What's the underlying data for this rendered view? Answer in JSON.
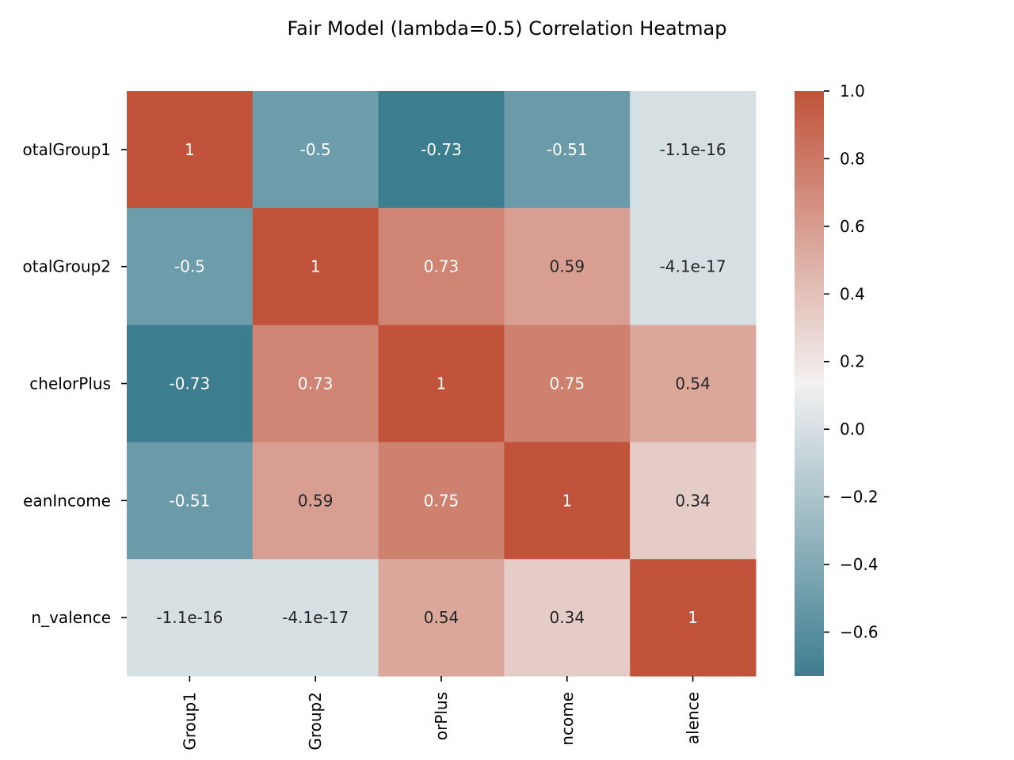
{
  "chart_data": {
    "type": "heatmap",
    "title": "Fair Model (lambda=0.5) Correlation Heatmap",
    "row_labels": [
      "otalGroup1",
      "otalGroup2",
      "chelorPlus",
      "eanIncome",
      "n_valence"
    ],
    "col_labels": [
      "Group1",
      "Group2",
      "orPlus",
      "ncome",
      "alence"
    ],
    "values": [
      [
        1,
        -0.5,
        -0.73,
        -0.51,
        -1.1e-16
      ],
      [
        -0.5,
        1,
        0.73,
        0.59,
        -4.1e-17
      ],
      [
        -0.73,
        0.73,
        1,
        0.75,
        0.54
      ],
      [
        -0.51,
        0.59,
        0.75,
        1,
        0.34
      ],
      [
        -1.1e-16,
        -4.1e-17,
        0.54,
        0.34,
        1
      ]
    ],
    "annotations": [
      [
        "1",
        "-0.5",
        "-0.73",
        "-0.51",
        "-1.1e-16"
      ],
      [
        "-0.5",
        "1",
        "0.73",
        "0.59",
        "-4.1e-17"
      ],
      [
        "-0.73",
        "0.73",
        "1",
        "0.75",
        "0.54"
      ],
      [
        "-0.51",
        "0.59",
        "0.75",
        "1",
        "0.34"
      ],
      [
        "-1.1e-16",
        "-4.1e-17",
        "0.54",
        "0.34",
        "1"
      ]
    ],
    "colorbar": {
      "range": [
        -0.73,
        1.0
      ],
      "ticks": [
        1.0,
        0.8,
        0.6,
        0.4,
        0.2,
        0.0,
        -0.2,
        -0.4,
        -0.6
      ],
      "tick_labels": [
        "1.0",
        "0.8",
        "0.6",
        "0.4",
        "0.2",
        "0.0",
        "−0.2",
        "−0.4",
        "−0.6"
      ],
      "colormap": "diverging teal-white-rust",
      "color_low": "#3d7d90",
      "color_mid": "#f2f1f1",
      "color_high": "#c0533a"
    },
    "grid": false,
    "legend": "colorbar right"
  }
}
